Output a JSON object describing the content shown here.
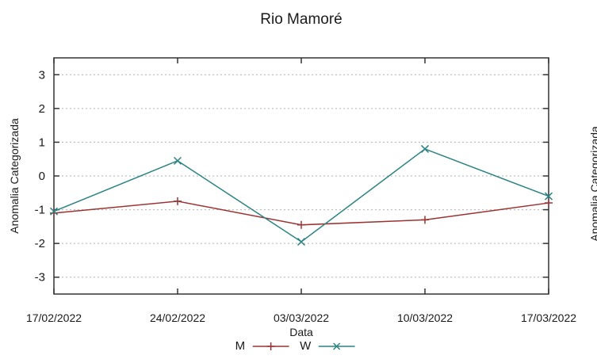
{
  "chart_data": {
    "type": "line",
    "title": "Rio Mamoré",
    "xlabel": "Data",
    "ylabel": "Anomalia Categorizada",
    "x_tick_labels": [
      "17/02/2022",
      "24/02/2022",
      "03/03/2022",
      "10/03/2022",
      "17/03/2022"
    ],
    "y_ticks": [
      3,
      2,
      1,
      0,
      -1,
      -2,
      -3
    ],
    "ylim": [
      -3.5,
      3.5
    ],
    "grid": true,
    "grid_style": "dotted",
    "legend_position": "bottom-center",
    "series": [
      {
        "name": "M",
        "color": "#9e3232",
        "marker": "plus",
        "values": [
          -1.1,
          -0.75,
          -1.45,
          -1.3,
          -0.8
        ]
      },
      {
        "name": "W",
        "color": "#2b8383",
        "marker": "cross",
        "values": [
          -1.05,
          0.45,
          -1.95,
          0.8,
          -0.6
        ]
      }
    ]
  },
  "right_partial_chart": {
    "ylabel": "Anomalia Categorizada"
  },
  "colors": {
    "background": "#ffffff",
    "text": "#1a1a1a",
    "axis_border": "#333333",
    "gridline": "#b3b3b3"
  }
}
